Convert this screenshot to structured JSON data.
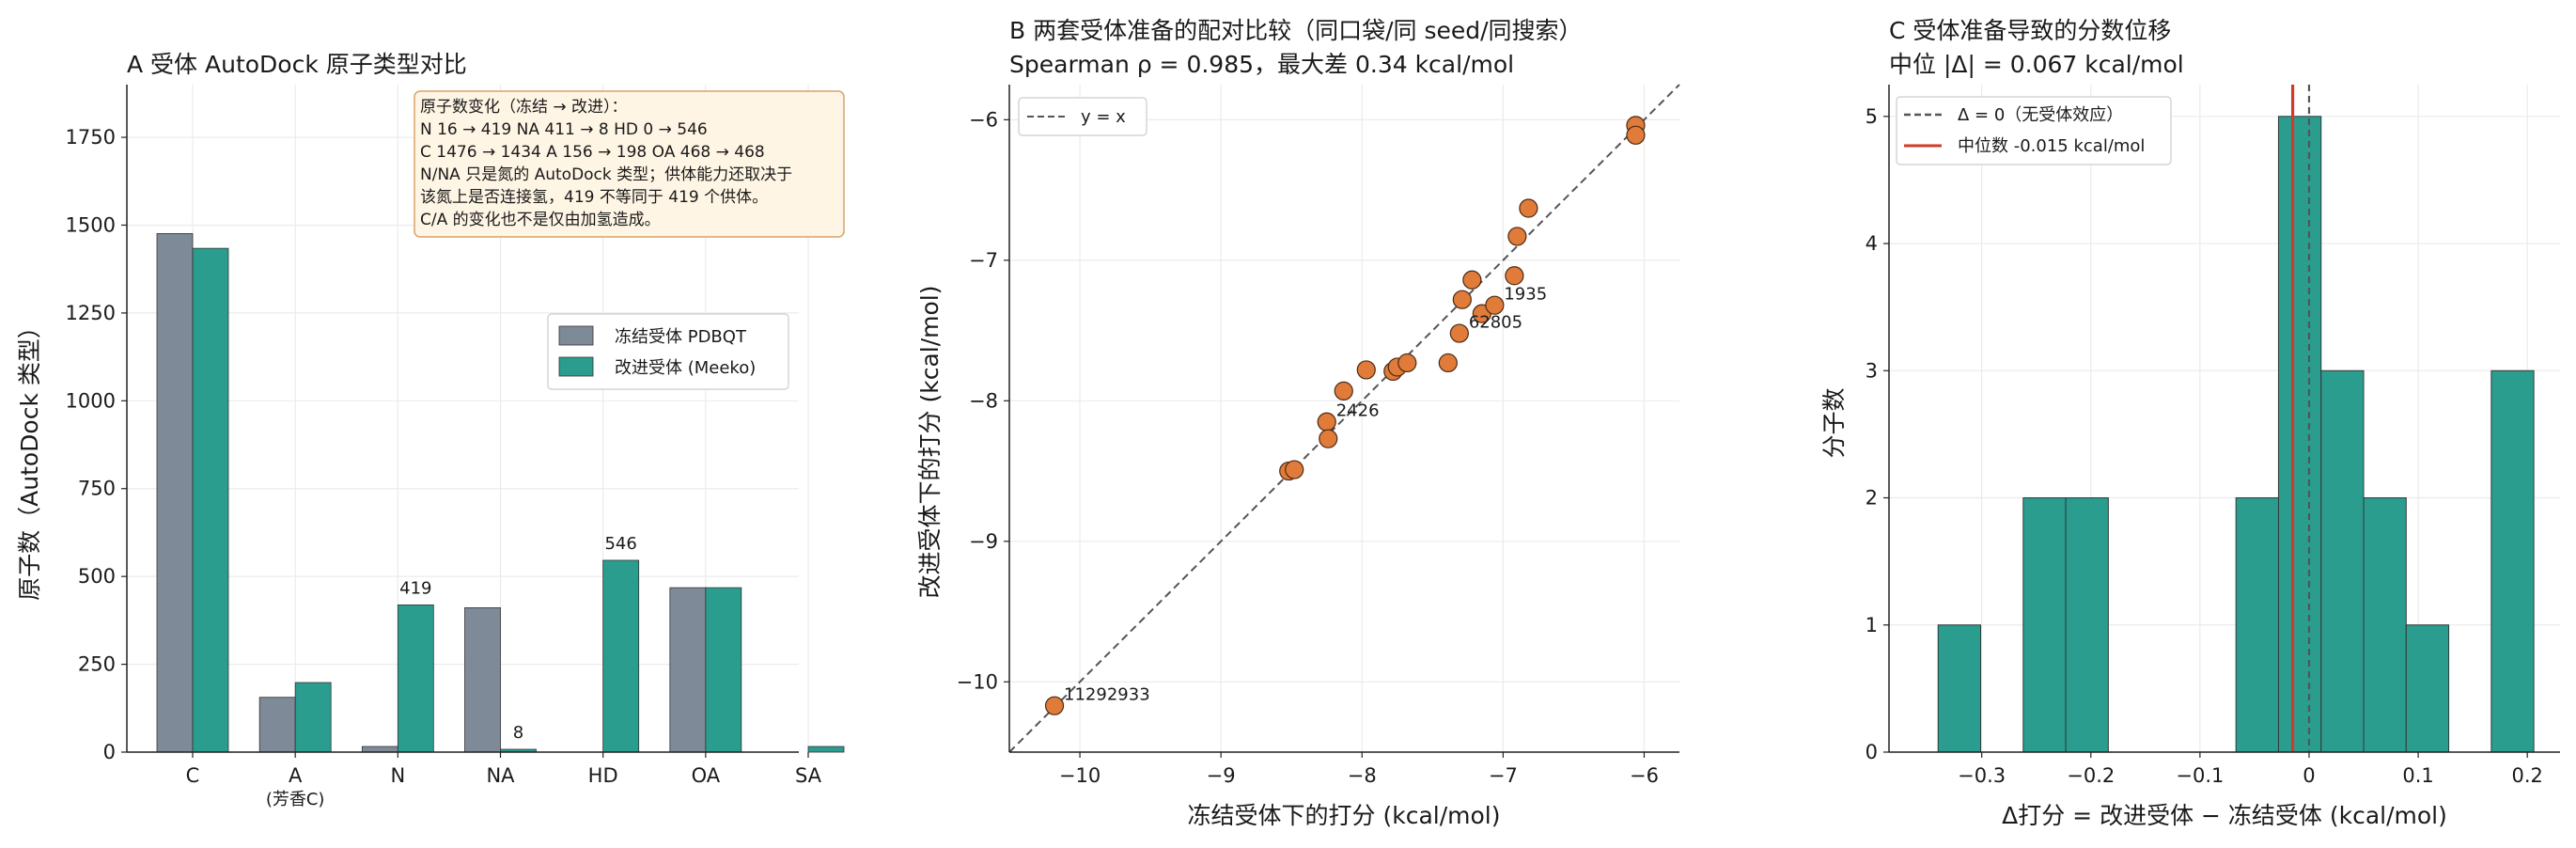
{
  "colors": {
    "frozen": "#7f8a98",
    "meeko": "#2a9d8f",
    "scatter_marker": "#e07b39",
    "median_line": "#d03b2a",
    "zero_line": "#555555",
    "note_bg": "#fff5e4",
    "note_border": "#d9a36a"
  },
  "chart_data": [
    {
      "id": "A",
      "type": "bar",
      "title": "A  受体 AutoDock 原子类型对比",
      "xlabel": "",
      "ylabel": "原子数（AutoDock 类型）",
      "categories": [
        "C",
        "A",
        "N",
        "NA",
        "HD",
        "OA",
        "SA"
      ],
      "category_sublabels": [
        "",
        "(芳香C)",
        "",
        "",
        "",
        "",
        ""
      ],
      "ylim": [
        0,
        1900
      ],
      "yticks": [
        0,
        250,
        500,
        750,
        1000,
        1250,
        1500,
        1750
      ],
      "grid": true,
      "legend_placement": "center-right",
      "series": [
        {
          "name": "冻结受体 PDBQT",
          "values": [
            1476,
            156,
            16,
            411,
            0,
            468,
            0
          ]
        },
        {
          "name": "改进受体 (Meeko)",
          "values": [
            1434,
            198,
            419,
            8,
            546,
            468,
            16
          ]
        }
      ],
      "bar_labels": [
        {
          "category": "N",
          "text": "419"
        },
        {
          "category": "NA",
          "text": "8"
        },
        {
          "category": "HD",
          "text": "546"
        }
      ],
      "annotation_lines": [
        "原子数变化（冻结 → 改进）：",
        "N 16 → 419    NA 411 → 8    HD 0 → 546",
        "C 1476 → 1434    A 156 → 198    OA 468 → 468",
        "N/NA 只是氮的 AutoDock 类型；供体能力还取决于",
        "该氮上是否连接氢，419 不等同于 419 个供体。",
        "C/A 的变化也不是仅由加氢造成。"
      ]
    },
    {
      "id": "B",
      "type": "scatter",
      "title_line1": "B  两套受体准备的配对比较（同口袋/同 seed/同搜索）",
      "title_line2": "Spearman ρ = 0.985，最大差 0.34 kcal/mol",
      "xlabel": "冻结受体下的打分 (kcal/mol)",
      "ylabel": "改进受体下的打分 (kcal/mol)",
      "xlim": [
        -10.5,
        -5.75
      ],
      "ylim": [
        -10.5,
        -5.75
      ],
      "xticks": [
        -10,
        -9,
        -8,
        -7,
        -6
      ],
      "yticks": [
        -10,
        -9,
        -8,
        -7,
        -6
      ],
      "grid": true,
      "legend_placement": "top-left",
      "legend_label": "y = x",
      "points": [
        {
          "x": -10.18,
          "y": -10.17
        },
        {
          "x": -8.52,
          "y": -8.5
        },
        {
          "x": -8.48,
          "y": -8.49
        },
        {
          "x": -8.25,
          "y": -8.15
        },
        {
          "x": -8.24,
          "y": -8.27
        },
        {
          "x": -8.13,
          "y": -7.93
        },
        {
          "x": -7.97,
          "y": -7.78
        },
        {
          "x": -7.78,
          "y": -7.79
        },
        {
          "x": -7.75,
          "y": -7.76
        },
        {
          "x": -7.68,
          "y": -7.73
        },
        {
          "x": -7.39,
          "y": -7.73
        },
        {
          "x": -7.31,
          "y": -7.52
        },
        {
          "x": -7.29,
          "y": -7.28
        },
        {
          "x": -7.22,
          "y": -7.14
        },
        {
          "x": -7.15,
          "y": -7.38
        },
        {
          "x": -7.06,
          "y": -7.32
        },
        {
          "x": -6.92,
          "y": -7.11
        },
        {
          "x": -6.9,
          "y": -6.83
        },
        {
          "x": -6.82,
          "y": -6.63
        },
        {
          "x": -6.06,
          "y": -6.04
        },
        {
          "x": -6.06,
          "y": -6.11
        }
      ],
      "point_labels": [
        {
          "x": -10.18,
          "y": -10.17,
          "text": "11292933"
        },
        {
          "x": -8.25,
          "y": -8.15,
          "text": "2426"
        },
        {
          "x": -7.06,
          "y": -7.32,
          "text": "1935"
        },
        {
          "x": -7.31,
          "y": -7.52,
          "text": "62805"
        }
      ]
    },
    {
      "id": "C",
      "type": "bar",
      "subtype": "histogram",
      "title_line1": "C  受体准备导致的分数位移",
      "title_line2": "中位 |Δ| = 0.067 kcal/mol",
      "xlabel": "Δ打分 = 改进受体 − 冻结受体 (kcal/mol)",
      "ylabel": "分子数",
      "xlim": [
        -0.385,
        0.23
      ],
      "ylim": [
        0,
        5.25
      ],
      "xticks": [
        -0.3,
        -0.2,
        -0.1,
        0.0,
        0.1,
        0.2
      ],
      "yticks": [
        0,
        1,
        2,
        3,
        4,
        5
      ],
      "grid": true,
      "legend_placement": "top-left",
      "bins": [
        {
          "x0": -0.34,
          "x1": -0.301,
          "count": 1
        },
        {
          "x0": -0.262,
          "x1": -0.223,
          "count": 2
        },
        {
          "x0": -0.223,
          "x1": -0.184,
          "count": 2
        },
        {
          "x0": -0.067,
          "x1": -0.028,
          "count": 2
        },
        {
          "x0": -0.028,
          "x1": 0.011,
          "count": 5
        },
        {
          "x0": 0.011,
          "x1": 0.05,
          "count": 3
        },
        {
          "x0": 0.05,
          "x1": 0.089,
          "count": 2
        },
        {
          "x0": 0.089,
          "x1": 0.128,
          "count": 1
        },
        {
          "x0": 0.167,
          "x1": 0.206,
          "count": 3
        }
      ],
      "zero_line": {
        "x": 0.0,
        "label": "Δ = 0（无受体效应）"
      },
      "median_line": {
        "x": -0.015,
        "label": "中位数 -0.015 kcal/mol"
      }
    }
  ]
}
